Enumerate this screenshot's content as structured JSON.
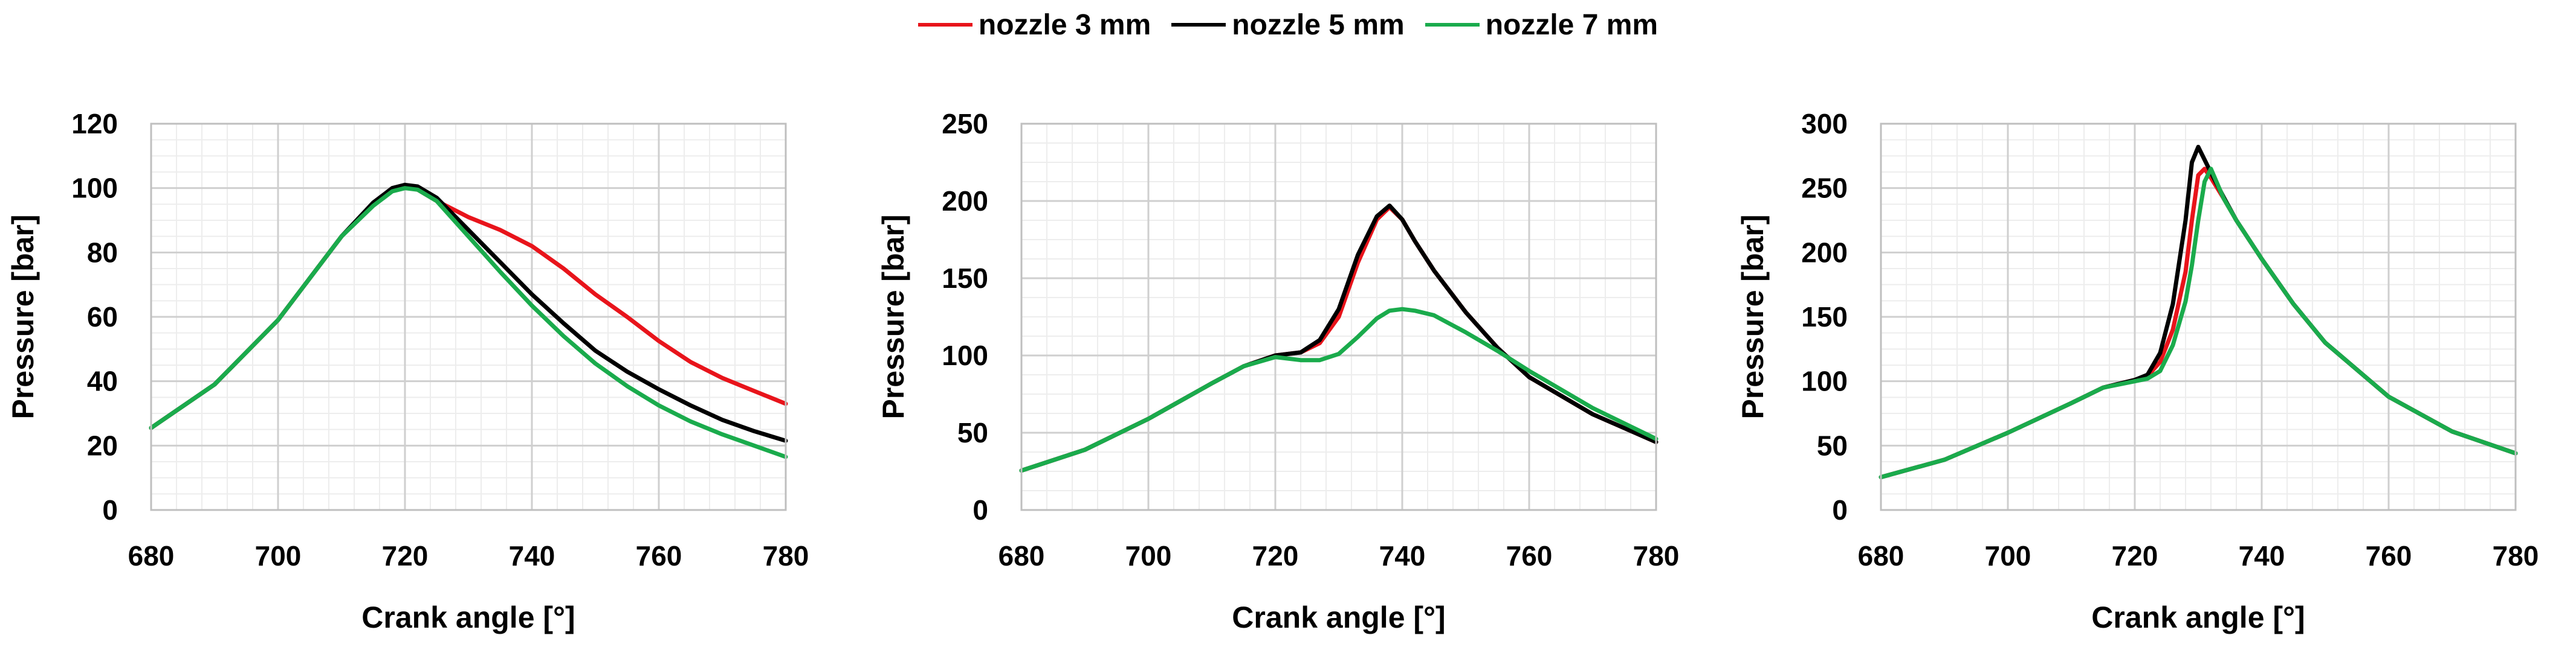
{
  "legend": [
    {
      "label": "nozzle 3 mm",
      "color": "#e8141b"
    },
    {
      "label": "nozzle 5 mm",
      "color": "#000000"
    },
    {
      "label": "nozzle 7 mm",
      "color": "#1aab4c"
    }
  ],
  "chart_data": [
    {
      "type": "line",
      "title": "",
      "xlabel": "Crank angle [°]",
      "ylabel": "Pressure [bar]",
      "xlim": [
        680,
        780
      ],
      "ylim": [
        0,
        120
      ],
      "xticks": [
        680,
        700,
        720,
        740,
        760,
        780
      ],
      "yticks": [
        0,
        20,
        40,
        60,
        80,
        100,
        120
      ],
      "grid": true,
      "x": [
        680,
        690,
        700,
        705,
        710,
        715,
        718,
        720,
        722,
        725,
        730,
        735,
        740,
        745,
        750,
        755,
        760,
        765,
        770,
        775,
        780
      ],
      "series": [
        {
          "name": "nozzle 3 mm",
          "color": "#e8141b",
          "values": [
            25.5,
            39,
            59,
            72,
            85,
            95,
            99.5,
            100.5,
            99.5,
            96,
            91,
            87,
            82,
            75,
            67,
            60,
            52.5,
            46,
            41,
            37,
            33
          ]
        },
        {
          "name": "nozzle 5 mm",
          "color": "#000000",
          "values": [
            25.5,
            39,
            59,
            72,
            85,
            95.5,
            100,
            101,
            100.5,
            97,
            87,
            77,
            67,
            58,
            49.5,
            43,
            37.5,
            32.5,
            28,
            24.5,
            21.5
          ]
        },
        {
          "name": "nozzle 7 mm",
          "color": "#1aab4c",
          "values": [
            25.5,
            39,
            59,
            72,
            85,
            94.5,
            99,
            100,
            99.5,
            96,
            85,
            74,
            63.5,
            54,
            45.5,
            38.5,
            32.5,
            27.5,
            23.5,
            20,
            16.5
          ]
        }
      ]
    },
    {
      "type": "line",
      "title": "",
      "xlabel": "Crank angle [°]",
      "ylabel": "Pressure [bar]",
      "xlim": [
        680,
        780
      ],
      "ylim": [
        0,
        250
      ],
      "xticks": [
        680,
        700,
        720,
        740,
        760,
        780
      ],
      "yticks": [
        0,
        50,
        100,
        150,
        200,
        250
      ],
      "grid": true,
      "x": [
        680,
        690,
        700,
        710,
        715,
        720,
        724,
        727,
        730,
        733,
        736,
        738,
        740,
        742,
        745,
        750,
        755,
        760,
        770,
        780
      ],
      "series": [
        {
          "name": "nozzle 3 mm",
          "color": "#e8141b",
          "values": [
            25.5,
            39,
            59,
            82,
            93,
            100,
            102,
            108,
            125,
            160,
            188,
            196,
            188,
            174,
            155,
            128,
            105,
            86,
            62,
            44
          ]
        },
        {
          "name": "nozzle 5 mm",
          "color": "#000000",
          "values": [
            25.5,
            39,
            59,
            82,
            93,
            100,
            102,
            110,
            130,
            165,
            190,
            197,
            188,
            174,
            155,
            128,
            105,
            86,
            62,
            44
          ]
        },
        {
          "name": "nozzle 7 mm",
          "color": "#1aab4c",
          "values": [
            25.5,
            39,
            59,
            82,
            93,
            99,
            97,
            97,
            101,
            112,
            124,
            129,
            130,
            129,
            126,
            115,
            103,
            90,
            66,
            46
          ]
        }
      ]
    },
    {
      "type": "line",
      "title": "",
      "xlabel": "Crank angle [°]",
      "ylabel": "Pressure [bar]",
      "xlim": [
        680,
        780
      ],
      "ylim": [
        0,
        300
      ],
      "xticks": [
        680,
        700,
        720,
        740,
        760,
        780
      ],
      "yticks": [
        0,
        50,
        100,
        150,
        200,
        250,
        300
      ],
      "grid": true,
      "x": [
        680,
        690,
        700,
        710,
        715,
        720,
        722,
        724,
        726,
        728,
        729,
        730,
        731,
        732,
        734,
        736,
        740,
        745,
        750,
        760,
        770,
        780
      ],
      "series": [
        {
          "name": "nozzle 3 mm",
          "color": "#e8141b",
          "values": [
            25.5,
            39,
            60,
            83,
            95,
            101,
            104,
            115,
            140,
            185,
            225,
            260,
            265,
            258,
            242,
            225,
            195,
            160,
            130,
            88,
            61,
            44
          ]
        },
        {
          "name": "nozzle 5 mm",
          "color": "#000000",
          "values": [
            25.5,
            39,
            60,
            83,
            95,
            101,
            105,
            122,
            160,
            225,
            270,
            282,
            272,
            262,
            243,
            225,
            195,
            160,
            130,
            88,
            61,
            44
          ]
        },
        {
          "name": "nozzle 7 mm",
          "color": "#1aab4c",
          "values": [
            25.5,
            39,
            60,
            83,
            95,
            100,
            102,
            108,
            128,
            162,
            190,
            225,
            255,
            265,
            242,
            225,
            195,
            160,
            130,
            88,
            61,
            44
          ]
        }
      ]
    }
  ]
}
